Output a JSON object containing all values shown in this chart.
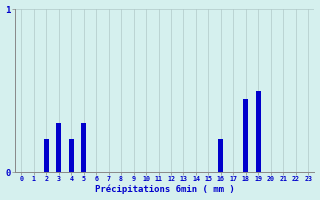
{
  "title": "",
  "xlabel": "Précipitations 6min ( mm )",
  "categories": [
    0,
    1,
    2,
    3,
    4,
    5,
    6,
    7,
    8,
    9,
    10,
    11,
    12,
    13,
    14,
    15,
    16,
    17,
    18,
    19,
    20,
    21,
    22,
    23
  ],
  "values": [
    0,
    0,
    0.2,
    0.3,
    0.2,
    0.3,
    0,
    0,
    0,
    0,
    0,
    0,
    0,
    0,
    0,
    0,
    0.2,
    0,
    0.45,
    0.5,
    0,
    0,
    0,
    0
  ],
  "bar_color": "#0000cc",
  "background_color": "#d5f0ee",
  "grid_color": "#b0c8c8",
  "axis_color": "#888888",
  "text_color": "#0000cc",
  "ylim": [
    0,
    1.0
  ],
  "ytick_labels": [
    "0",
    "1"
  ],
  "ytick_vals": [
    0,
    1
  ],
  "xlim": [
    -0.5,
    23.5
  ],
  "bar_width": 0.4
}
